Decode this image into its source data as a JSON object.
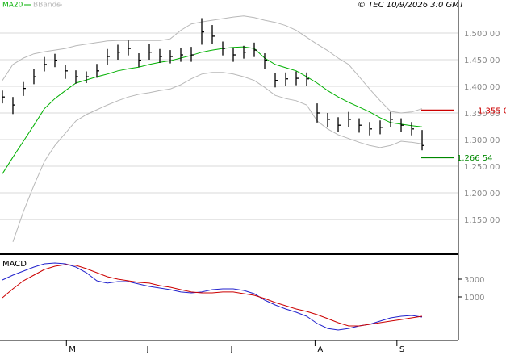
{
  "header": {
    "copyright": "© TEC 10/9/2026 3:0 GMT"
  },
  "chart_data": [
    {
      "type": "ohlc",
      "x": [
        0,
        1,
        2,
        3,
        4,
        5,
        6,
        7,
        8,
        9,
        10,
        11,
        12,
        13,
        14,
        15,
        16,
        17,
        18,
        19,
        20,
        21,
        22,
        23,
        24,
        25,
        26,
        27,
        28,
        29,
        30,
        31,
        32,
        33,
        34,
        35,
        36,
        37,
        38,
        39,
        40
      ],
      "xlim": [
        -0.23,
        43.46
      ],
      "ylim": [
        1.085,
        1.562
      ],
      "yticks": [
        {
          "value": 1.5,
          "label": "1.500 00"
        },
        {
          "value": 1.45,
          "label": "1.450 00"
        },
        {
          "value": 1.4,
          "label": "1.400 00"
        },
        {
          "value": 1.35,
          "label": "1.350 00"
        },
        {
          "value": 1.3,
          "label": "1.300 00"
        },
        {
          "value": 1.25,
          "label": "1.250 00"
        },
        {
          "value": 1.2,
          "label": "1.200 00"
        },
        {
          "value": 1.15,
          "label": "1.150 00"
        }
      ],
      "grid": true,
      "bar_color": "#000000",
      "high": [
        1.392,
        1.38,
        1.408,
        1.432,
        1.455,
        1.461,
        1.44,
        1.43,
        1.428,
        1.442,
        1.47,
        1.478,
        1.486,
        1.462,
        1.48,
        1.47,
        1.468,
        1.472,
        1.474,
        1.528,
        1.515,
        1.484,
        1.472,
        1.476,
        1.482,
        1.462,
        1.425,
        1.426,
        1.428,
        1.426,
        1.368,
        1.35,
        1.342,
        1.352,
        1.34,
        1.333,
        1.336,
        1.352,
        1.34,
        1.333,
        1.318
      ],
      "low": [
        1.368,
        1.348,
        1.382,
        1.404,
        1.428,
        1.436,
        1.414,
        1.405,
        1.406,
        1.416,
        1.44,
        1.45,
        1.458,
        1.436,
        1.45,
        1.444,
        1.443,
        1.446,
        1.446,
        1.478,
        1.48,
        1.458,
        1.446,
        1.452,
        1.455,
        1.432,
        1.398,
        1.4,
        1.402,
        1.4,
        1.332,
        1.324,
        1.314,
        1.324,
        1.313,
        1.308,
        1.31,
        1.324,
        1.314,
        1.308,
        1.28
      ],
      "close": [
        1.38,
        1.365,
        1.396,
        1.418,
        1.441,
        1.449,
        1.429,
        1.418,
        1.418,
        1.429,
        1.456,
        1.464,
        1.471,
        1.449,
        1.464,
        1.456,
        1.456,
        1.459,
        1.459,
        1.502,
        1.494,
        1.471,
        1.459,
        1.464,
        1.468,
        1.449,
        1.411,
        1.414,
        1.415,
        1.414,
        1.35,
        1.338,
        1.327,
        1.338,
        1.327,
        1.32,
        1.323,
        1.338,
        1.327,
        1.32,
        1.289
      ],
      "series": [
        {
          "name": "MA20",
          "color": "#00b000",
          "values": [
            1.236,
            1.267,
            1.297,
            1.327,
            1.358,
            1.377,
            1.392,
            1.406,
            1.412,
            1.418,
            1.423,
            1.429,
            1.433,
            1.436,
            1.441,
            1.445,
            1.448,
            1.453,
            1.458,
            1.464,
            1.468,
            1.471,
            1.473,
            1.474,
            1.471,
            1.453,
            1.441,
            1.435,
            1.429,
            1.418,
            1.406,
            1.392,
            1.38,
            1.37,
            1.361,
            1.352,
            1.341,
            1.332,
            1.329,
            1.326,
            1.324
          ]
        },
        {
          "name": "BBands",
          "color": "#b8b8b8",
          "upper": [
            1.411,
            1.441,
            1.453,
            1.461,
            1.465,
            1.468,
            1.471,
            1.476,
            1.479,
            1.482,
            1.485,
            1.486,
            1.486,
            1.486,
            1.486,
            1.486,
            1.489,
            1.505,
            1.517,
            1.521,
            1.524,
            1.527,
            1.53,
            1.532,
            1.529,
            1.524,
            1.52,
            1.514,
            1.505,
            1.492,
            1.479,
            1.467,
            1.453,
            1.441,
            1.418,
            1.395,
            1.373,
            1.353,
            1.35,
            1.352,
            1.358
          ],
          "lower": [
            null,
            1.108,
            1.165,
            1.214,
            1.259,
            1.289,
            1.312,
            1.335,
            1.347,
            1.356,
            1.365,
            1.373,
            1.38,
            1.385,
            1.388,
            1.392,
            1.395,
            1.403,
            1.414,
            1.423,
            1.426,
            1.426,
            1.423,
            1.418,
            1.411,
            1.398,
            1.383,
            1.377,
            1.373,
            1.365,
            1.335,
            1.32,
            1.309,
            1.302,
            1.295,
            1.289,
            1.285,
            1.289,
            1.297,
            1.295,
            1.292
          ]
        }
      ],
      "markers": [
        {
          "value": 1.355,
          "label": "1.355 0",
          "color": "#cc0000"
        },
        {
          "value": 1.26654,
          "label": "1.266 54",
          "color": "#008800"
        }
      ]
    },
    {
      "type": "line",
      "title": "MACD",
      "x": [
        0,
        1,
        2,
        3,
        4,
        5,
        6,
        7,
        8,
        9,
        10,
        11,
        12,
        13,
        14,
        15,
        16,
        17,
        18,
        19,
        20,
        21,
        22,
        23,
        24,
        25,
        26,
        27,
        28,
        29,
        30,
        31,
        32,
        33,
        34,
        35,
        36,
        37,
        38,
        39,
        40
      ],
      "xlim": [
        -0.23,
        43.46
      ],
      "ylim": [
        -3909,
        5727
      ],
      "yticks": [
        3000,
        1000
      ],
      "xticks": [
        {
          "value": 6.1,
          "label": "M"
        },
        {
          "value": 13.5,
          "label": "J"
        },
        {
          "value": 21.5,
          "label": "J"
        },
        {
          "value": 29.8,
          "label": "A"
        },
        {
          "value": 37.6,
          "label": "S"
        }
      ],
      "series": [
        {
          "color": "#2222cc",
          "values": [
            2910,
            3450,
            3910,
            4360,
            4730,
            4820,
            4730,
            4360,
            3730,
            2820,
            2550,
            2730,
            2730,
            2450,
            2180,
            2000,
            1820,
            1550,
            1450,
            1550,
            1820,
            1910,
            1910,
            1730,
            1360,
            640,
            90,
            -360,
            -730,
            -1180,
            -2000,
            -2550,
            -2730,
            -2550,
            -2270,
            -2090,
            -1730,
            -1360,
            -1180,
            -1090,
            -1270
          ]
        },
        {
          "color": "#cc0000",
          "values": [
            910,
            1910,
            2820,
            3450,
            4090,
            4450,
            4640,
            4550,
            4180,
            3730,
            3270,
            3000,
            2820,
            2640,
            2550,
            2270,
            2090,
            1820,
            1550,
            1450,
            1450,
            1550,
            1550,
            1360,
            1180,
            820,
            360,
            0,
            -360,
            -640,
            -1000,
            -1450,
            -1910,
            -2270,
            -2270,
            -2090,
            -1910,
            -1730,
            -1550,
            -1360,
            -1180
          ]
        }
      ]
    }
  ]
}
